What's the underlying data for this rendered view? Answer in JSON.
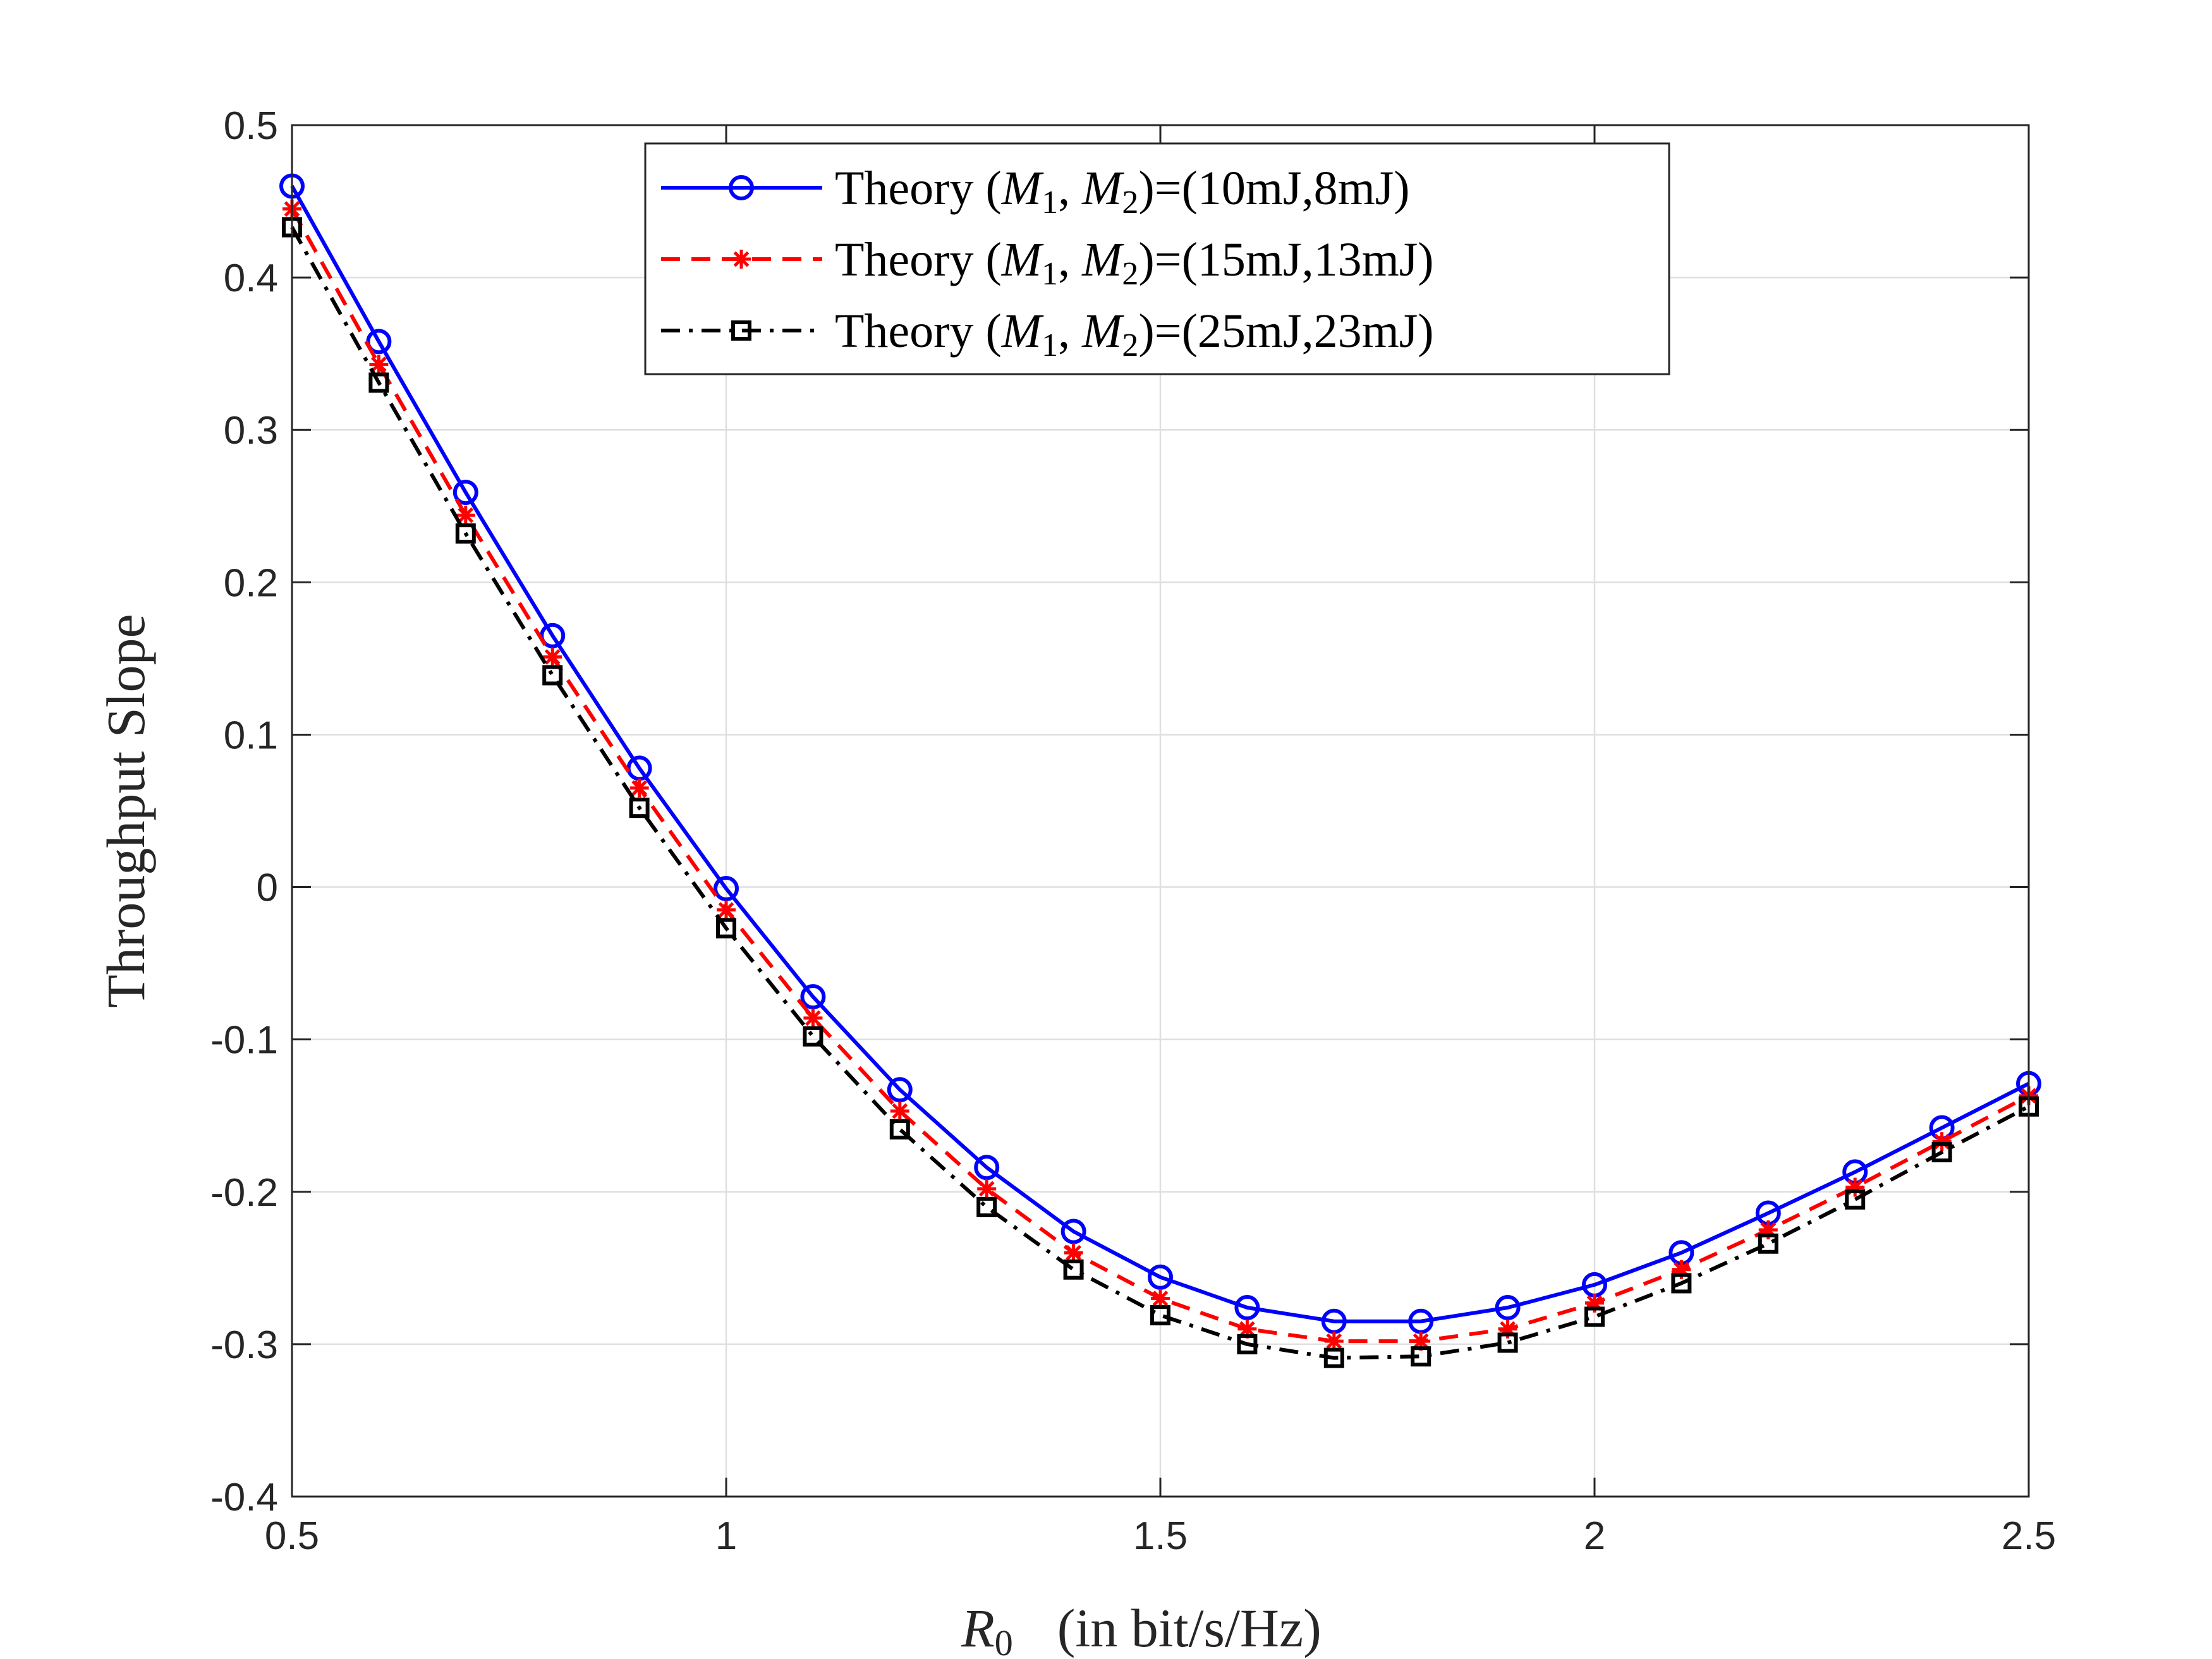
{
  "chart_data": {
    "type": "line",
    "title": "",
    "xlabel": {
      "symbol": "R",
      "subscript": "0",
      "unit": "(in bit/s/Hz)"
    },
    "ylabel": "Throughput Slope",
    "xlim": [
      0.5,
      2.5
    ],
    "ylim": [
      -0.4,
      0.5
    ],
    "grid": true,
    "legend_position": "top-center",
    "xticks": [
      0.5,
      1,
      1.5,
      2,
      2.5
    ],
    "xtick_labels": [
      "0.5",
      "1",
      "1.5",
      "2",
      "2.5"
    ],
    "yticks": [
      -0.4,
      -0.3,
      -0.2,
      -0.1,
      0,
      0.1,
      0.2,
      0.3,
      0.4,
      0.5
    ],
    "ytick_labels": [
      "-0.4",
      "-0.3",
      "-0.2",
      "-0.1",
      "0",
      "0.1",
      "0.2",
      "0.3",
      "0.4",
      "0.5"
    ],
    "x": [
      0.5,
      0.6,
      0.7,
      0.8,
      0.9,
      1.0,
      1.1,
      1.2,
      1.3,
      1.4,
      1.5,
      1.6,
      1.7,
      1.8,
      1.9,
      2.0,
      2.1,
      2.2,
      2.3,
      2.4,
      2.5
    ],
    "series": [
      {
        "name": "Theory (M1, M2)=(10mJ,8mJ)",
        "legend": {
          "prefix": "Theory (",
          "v1": "M",
          "s1": "1",
          "sep": ", ",
          "v2": "M",
          "s2": "2",
          "suffix": ")=(10mJ,8mJ)"
        },
        "color": "#0000ff",
        "linestyle": "solid",
        "marker": "circle",
        "values": [
          0.46,
          0.358,
          0.259,
          0.165,
          0.078,
          -0.001,
          -0.072,
          -0.133,
          -0.184,
          -0.226,
          -0.256,
          -0.276,
          -0.285,
          -0.285,
          -0.276,
          -0.261,
          -0.24,
          -0.214,
          -0.187,
          -0.158,
          -0.129
        ]
      },
      {
        "name": "Theory (M1, M2)=(15mJ,13mJ)",
        "legend": {
          "prefix": "Theory (",
          "v1": "M",
          "s1": "1",
          "sep": ", ",
          "v2": "M",
          "s2": "2",
          "suffix": ")=(15mJ,13mJ)"
        },
        "color": "#ff0000",
        "linestyle": "dashed",
        "marker": "asterisk",
        "values": [
          0.445,
          0.343,
          0.244,
          0.151,
          0.065,
          -0.015,
          -0.086,
          -0.147,
          -0.198,
          -0.24,
          -0.27,
          -0.29,
          -0.298,
          -0.298,
          -0.29,
          -0.273,
          -0.251,
          -0.225,
          -0.197,
          -0.167,
          -0.137
        ]
      },
      {
        "name": "Theory (M1, M2)=(25mJ,23mJ)",
        "legend": {
          "prefix": "Theory (",
          "v1": "M",
          "s1": "1",
          "sep": ", ",
          "v2": "M",
          "s2": "2",
          "suffix": ")=(25mJ,23mJ)"
        },
        "color": "#000000",
        "linestyle": "dashdot",
        "marker": "square",
        "values": [
          0.433,
          0.331,
          0.232,
          0.139,
          0.052,
          -0.027,
          -0.098,
          -0.159,
          -0.21,
          -0.251,
          -0.281,
          -0.3,
          -0.309,
          -0.308,
          -0.299,
          -0.282,
          -0.26,
          -0.234,
          -0.205,
          -0.174,
          -0.144
        ]
      }
    ]
  }
}
